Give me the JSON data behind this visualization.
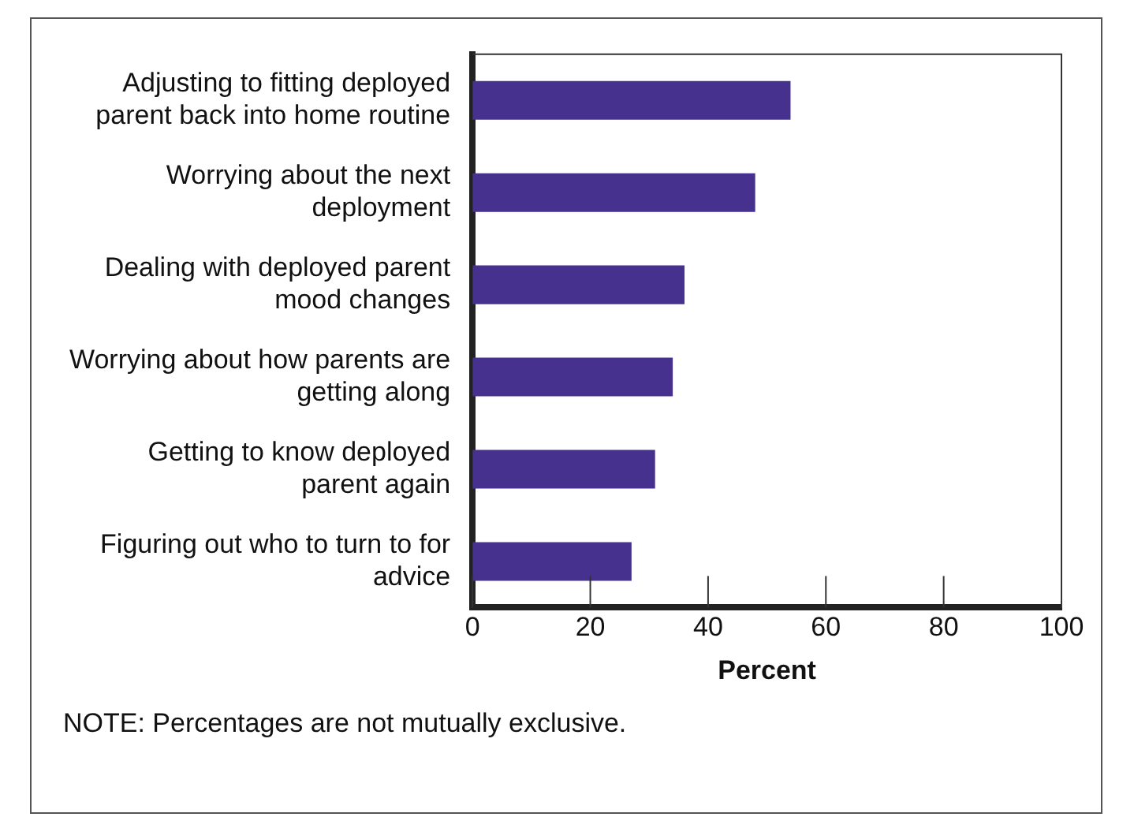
{
  "chart_data": {
    "type": "bar",
    "orientation": "horizontal",
    "categories": [
      "Adjusting to fitting deployed parent back into home routine",
      "Worrying about the next deployment",
      "Dealing with deployed parent mood changes",
      "Worrying about how parents are getting along",
      "Getting to know deployed parent again",
      "Figuring out who to turn to for advice"
    ],
    "values": [
      54,
      48,
      36,
      34,
      31,
      27
    ],
    "color": "#46318f",
    "xlabel": "Percent",
    "xlim": [
      0,
      100
    ],
    "xticks": [
      0,
      20,
      40,
      60,
      80,
      100
    ],
    "grid": false,
    "legend": false,
    "annotations": [
      "NOTE: Percentages are not mutually exclusive."
    ]
  }
}
